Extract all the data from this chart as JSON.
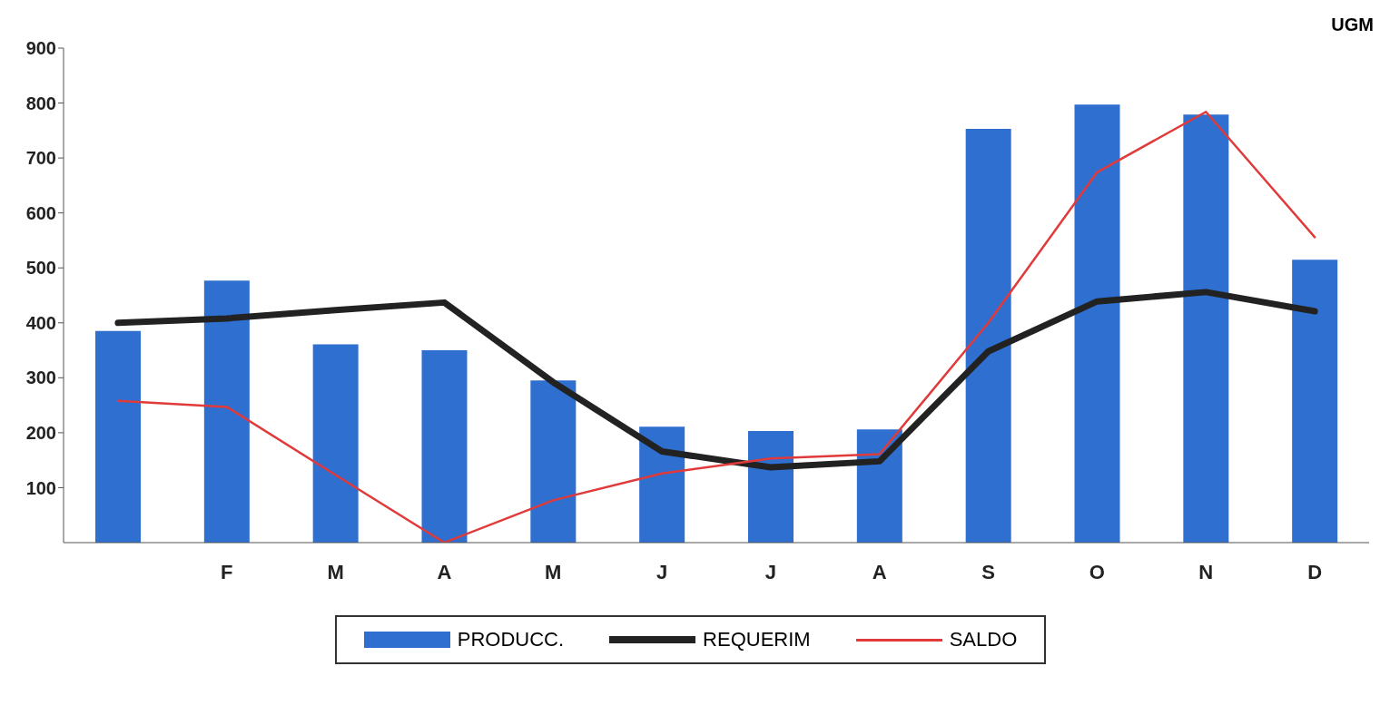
{
  "chart_data": {
    "type": "bar",
    "ylabel": "UGM",
    "categories": [
      null,
      "F",
      "M",
      "A",
      "M",
      "J",
      "J",
      "A",
      "S",
      "O",
      "N",
      "D"
    ],
    "series": [
      {
        "name": "PRODUCC.",
        "color": "#2e6fd0",
        "values": [
          385,
          477,
          361,
          350,
          295,
          211,
          203,
          206,
          753,
          797,
          779,
          515
        ]
      },
      {
        "name": "REQUERIM",
        "type": "line",
        "color": "#222222",
        "values": [
          400,
          408,
          423,
          437,
          292,
          166,
          137,
          148,
          348,
          439,
          456,
          421
        ]
      },
      {
        "name": "SALDO",
        "type": "line",
        "color": "#e03a3a",
        "values": [
          258,
          247,
          123,
          0,
          77,
          126,
          153,
          161,
          400,
          674,
          784,
          556
        ]
      }
    ],
    "ylim": [
      0,
      900
    ],
    "yticks": [
      100,
      200,
      300,
      400,
      500,
      600,
      700,
      800,
      900
    ],
    "grid": false,
    "legend": "bottom",
    "marker": "none"
  }
}
